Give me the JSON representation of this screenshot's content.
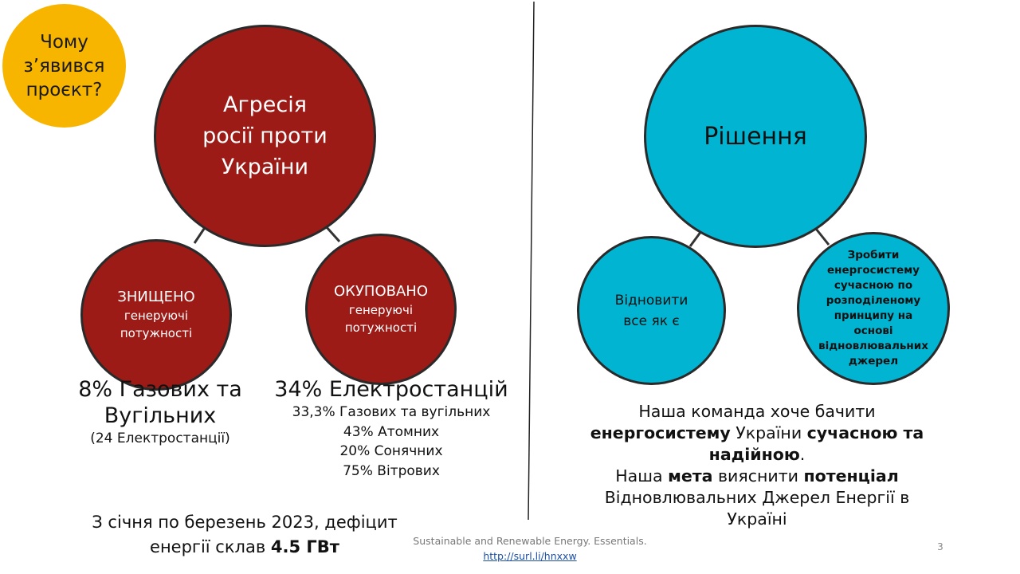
{
  "badge": {
    "lines": [
      "Чому",
      "з’явився",
      "проєкт?"
    ],
    "color": "#f7b500"
  },
  "problem": {
    "title_lines": [
      "Агресія",
      "росії проти",
      "України"
    ],
    "color": "#9c1b17",
    "destroyed": {
      "heading": "ЗНИЩЕНО",
      "sub_lines": [
        "генеруючі",
        "потужності"
      ]
    },
    "occupied": {
      "heading": "ОКУПОВАНО",
      "sub_lines": [
        "генеруючі",
        "потужності"
      ]
    }
  },
  "solution": {
    "title": "Рішення",
    "color": "#00b4d2",
    "restore_lines": [
      "Відновити",
      "все як є"
    ],
    "modernize_lines": [
      "Зробити",
      "енергосистему",
      "сучасною по",
      "розподіленому",
      "принципу на",
      "основі",
      "відновлювальних",
      "джерел"
    ]
  },
  "stats_destroyed": {
    "big_lines": [
      "8% Газових та",
      "Вугільних"
    ],
    "note": "(24 Електростанції)"
  },
  "stats_occupied": {
    "big": "34% Електростанцій",
    "details": [
      "33,3% Газових  та вугільних",
      "43% Атомних",
      "20% Сонячних",
      "75% Вітрових"
    ]
  },
  "deficit": {
    "line1": "З січня по березень 2023,  дефіцит",
    "line2_prefix": "енергії склав ",
    "line2_bold": "4.5 ГВт"
  },
  "team": {
    "l1": "Наша команда хоче бачити",
    "l2_bold1": "енергосистему",
    "l2_mid": " України ",
    "l2_bold2": "сучасною та",
    "l3_bold": "надійною",
    "l3_end": ".",
    "l4_pre": "Наша ",
    "l4_bold1": "мета",
    "l4_mid": " вияснити ",
    "l4_bold2": "потенціал",
    "l5": "Відновлювальних Джерел Енергії в",
    "l6": "Україні"
  },
  "footer": {
    "source": "Sustainable and Renewable Energy. Essentials.",
    "link": "http://surl.li/hnxxw",
    "page": "3"
  }
}
